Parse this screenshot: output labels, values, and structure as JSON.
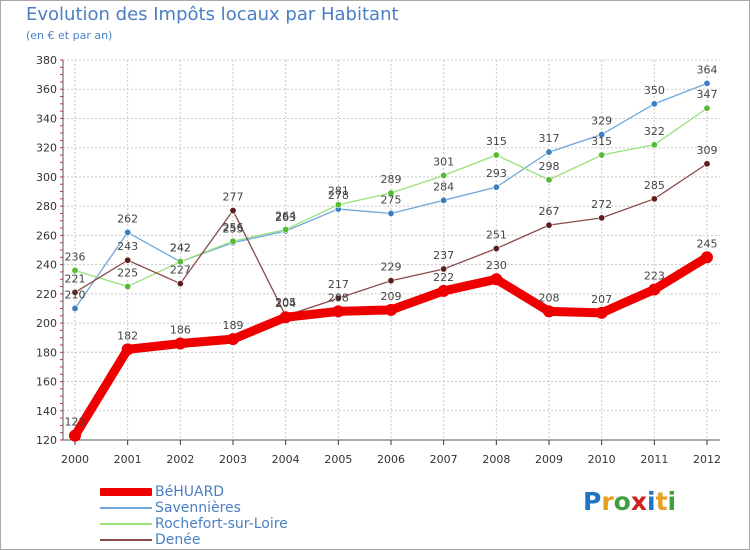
{
  "title": "Evolution des Impôts locaux par Habitant",
  "subtitle": "(en € et par an)",
  "logo": {
    "text": "Proxiti",
    "letter_colors": [
      "#1e73c8",
      "#e8a020",
      "#40a040",
      "#d02020",
      "#1e73c8",
      "#e8a020",
      "#40a040"
    ]
  },
  "chart_data": {
    "type": "line",
    "x": [
      "2000",
      "2001",
      "2002",
      "2003",
      "2004",
      "2005",
      "2006",
      "2007",
      "2008",
      "2009",
      "2010",
      "2011",
      "2012"
    ],
    "ylim": [
      120,
      380
    ],
    "yticks": [
      120,
      140,
      160,
      180,
      200,
      220,
      240,
      260,
      280,
      300,
      320,
      340,
      360,
      380
    ],
    "grid": true,
    "legend_position": "bottom-left",
    "series": [
      {
        "name": "BéHUARD",
        "color": "#ee0000",
        "emphasis": true,
        "values": [
          123,
          182,
          186,
          189,
          204,
          208,
          209,
          222,
          230,
          208,
          207,
          223,
          245
        ]
      },
      {
        "name": "Savennières",
        "color": "#6fa8dc",
        "marker": "#3c7fc0",
        "values": [
          210,
          262,
          242,
          255,
          263,
          278,
          275,
          284,
          293,
          317,
          329,
          350,
          364
        ]
      },
      {
        "name": "Rochefort-sur-Loire",
        "color": "#99e07a",
        "marker": "#55bb33",
        "values": [
          236,
          225,
          242,
          256,
          264,
          281,
          289,
          301,
          315,
          298,
          315,
          322,
          347
        ]
      },
      {
        "name": "Denée",
        "color": "#8b4a4a",
        "marker": "#5e1e1e",
        "values": [
          221,
          243,
          227,
          277,
          205,
          217,
          229,
          237,
          251,
          267,
          272,
          285,
          309
        ]
      }
    ]
  }
}
